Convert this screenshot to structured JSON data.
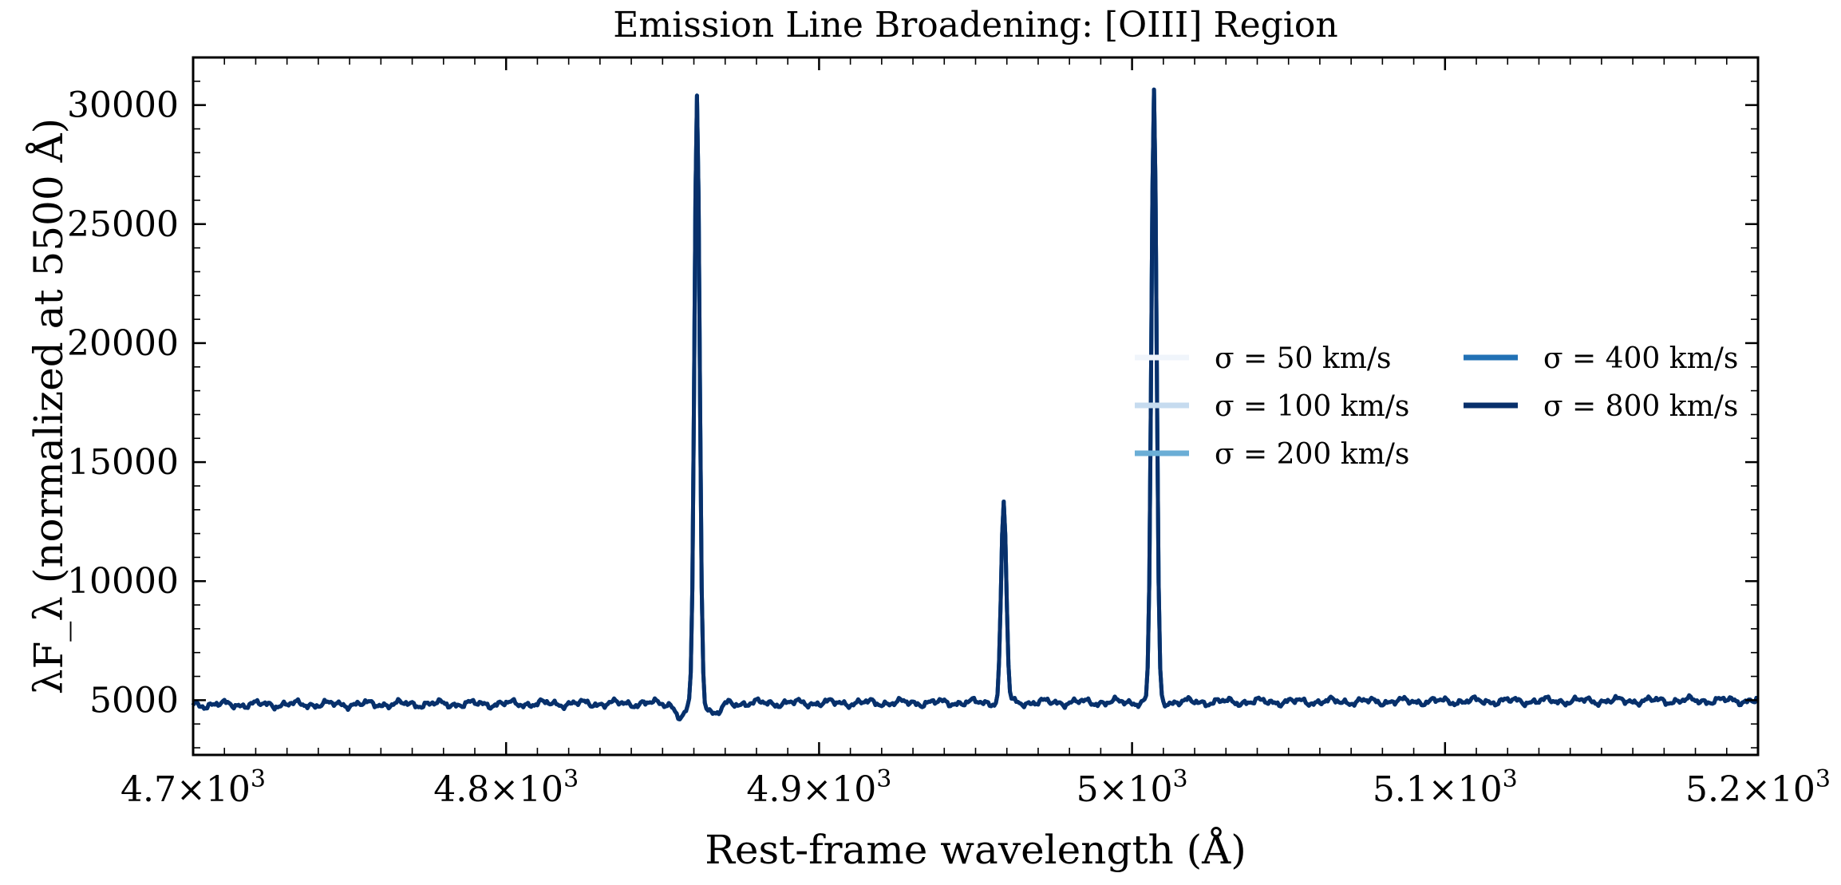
{
  "chart_data": {
    "type": "line",
    "title": "Emission Line Broadening: [OIII] Region",
    "xlabel": "Rest-frame wavelength (Å)",
    "ylabel": "λF_λ (normalized at 5500 Å)",
    "xlim": [
      4700,
      5200
    ],
    "ylim": [
      2700,
      32000
    ],
    "x_ticks": [
      4700,
      4800,
      4900,
      5000,
      5100,
      5200
    ],
    "x_tick_mantissas": [
      "4.7",
      "4.8",
      "4.9",
      "5",
      "5.1",
      "5.2"
    ],
    "y_ticks": [
      5000,
      10000,
      15000,
      20000,
      25000,
      30000
    ],
    "y_tick_labels": [
      "5000",
      "10000",
      "15000",
      "20000",
      "25000",
      "30000"
    ],
    "grid": false,
    "legend": {
      "placement": "center-right",
      "columns": 2
    },
    "continuum": 4900,
    "series": [
      {
        "name": "σ = 50 km/s",
        "sigma_kms": 50,
        "color": "#f0f5fb"
      },
      {
        "name": "σ = 100 km/s",
        "sigma_kms": 100,
        "color": "#c6dbef"
      },
      {
        "name": "σ = 200 km/s",
        "sigma_kms": 200,
        "color": "#6baed6"
      },
      {
        "name": "σ = 400 km/s",
        "sigma_kms": 400,
        "color": "#2171b5"
      },
      {
        "name": "σ = 800 km/s",
        "sigma_kms": 800,
        "color": "#08306b"
      }
    ],
    "lines": [
      {
        "wavelength": 4861,
        "peak": 30400
      },
      {
        "wavelength": 4959,
        "peak": 13300
      },
      {
        "wavelength": 5007,
        "peak": 30600
      }
    ]
  }
}
